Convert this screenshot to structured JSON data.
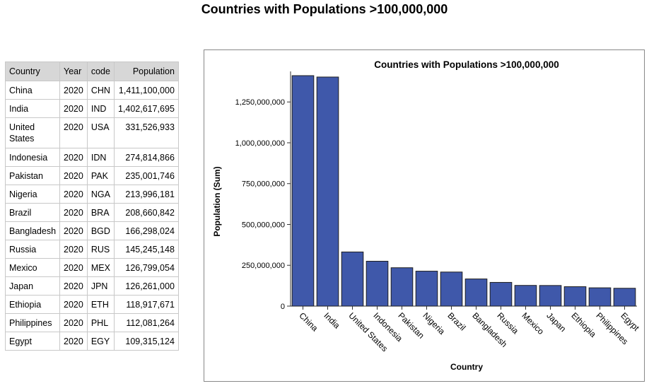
{
  "page": {
    "title": "Countries with Populations >100,000,000"
  },
  "table": {
    "headers": [
      "Country",
      "Year",
      "code",
      "Population"
    ],
    "rows": [
      [
        "China",
        "2020",
        "CHN",
        "1,411,100,000"
      ],
      [
        "India",
        "2020",
        "IND",
        "1,402,617,695"
      ],
      [
        "United States",
        "2020",
        "USA",
        "331,526,933"
      ],
      [
        "Indonesia",
        "2020",
        "IDN",
        "274,814,866"
      ],
      [
        "Pakistan",
        "2020",
        "PAK",
        "235,001,746"
      ],
      [
        "Nigeria",
        "2020",
        "NGA",
        "213,996,181"
      ],
      [
        "Brazil",
        "2020",
        "BRA",
        "208,660,842"
      ],
      [
        "Bangladesh",
        "2020",
        "BGD",
        "166,298,024"
      ],
      [
        "Russia",
        "2020",
        "RUS",
        "145,245,148"
      ],
      [
        "Mexico",
        "2020",
        "MEX",
        "126,799,054"
      ],
      [
        "Japan",
        "2020",
        "JPN",
        "126,261,000"
      ],
      [
        "Ethiopia",
        "2020",
        "ETH",
        "118,917,671"
      ],
      [
        "Philippines",
        "2020",
        "PHL",
        "112,081,264"
      ],
      [
        "Egypt",
        "2020",
        "EGY",
        "109,315,124"
      ]
    ]
  },
  "chart_data": {
    "type": "bar",
    "title": "Countries with Populations >100,000,000",
    "xlabel": "Country",
    "ylabel": "Population (Sum)",
    "categories": [
      "China",
      "India",
      "United States",
      "Indonesia",
      "Pakistan",
      "Nigeria",
      "Brazil",
      "Bangladesh",
      "Russia",
      "Mexico",
      "Japan",
      "Ethiopia",
      "Philippines",
      "Egypt"
    ],
    "values": [
      1411100000,
      1402617695,
      331526933,
      274814866,
      235001746,
      213996181,
      208660842,
      166298024,
      145245148,
      126799054,
      126261000,
      118917671,
      112081264,
      109315124
    ],
    "ylim": [
      0,
      1411100000
    ],
    "yticks": [
      0,
      250000000,
      500000000,
      750000000,
      1000000000,
      1250000000
    ],
    "ytick_labels": [
      "0",
      "250,000,000",
      "500,000,000",
      "750,000,000",
      "1,000,000,000",
      "1,250,000,000"
    ],
    "grid": false,
    "bar_color": "#3f58aa"
  }
}
